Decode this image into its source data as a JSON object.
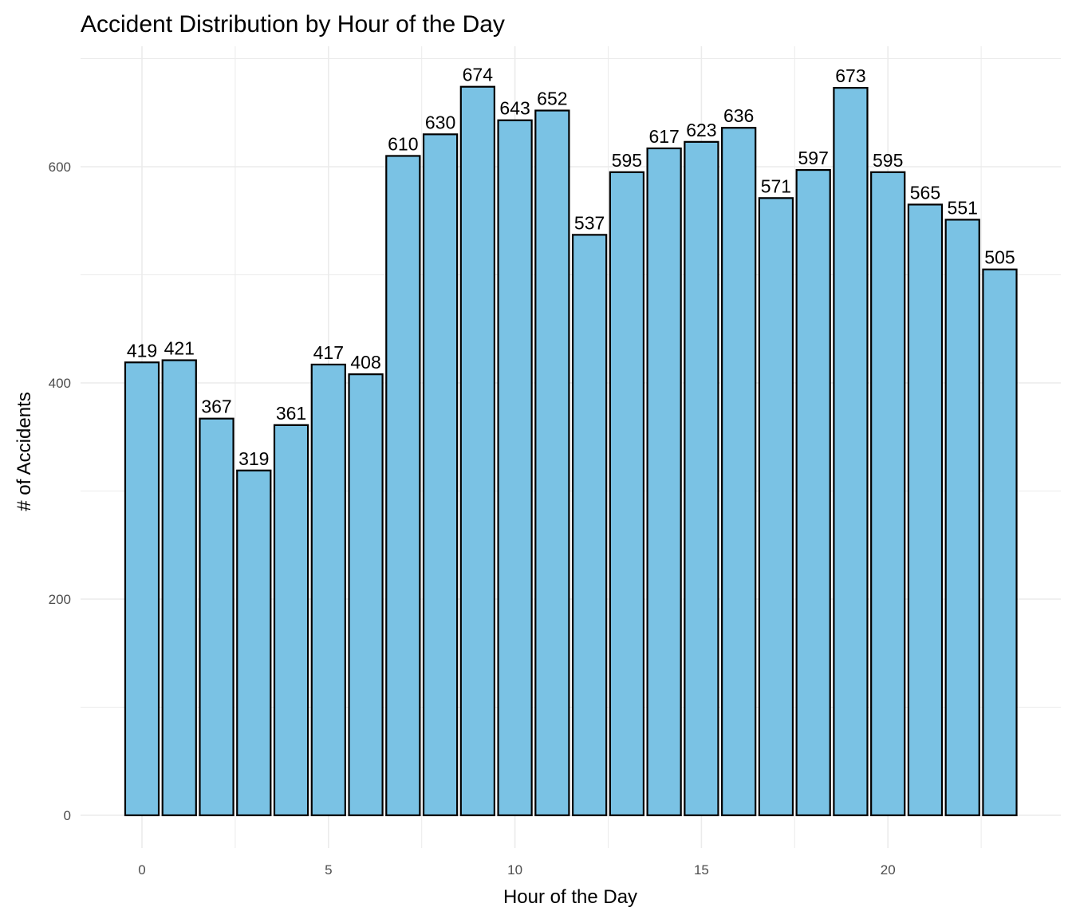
{
  "chart_data": {
    "type": "bar",
    "title": "Accident Distribution by Hour of the Day",
    "xlabel": "Hour of the Day",
    "ylabel": "# of Accidents",
    "x": [
      0,
      1,
      2,
      3,
      4,
      5,
      6,
      7,
      8,
      9,
      10,
      11,
      12,
      13,
      14,
      15,
      16,
      17,
      18,
      19,
      20,
      21,
      22,
      23
    ],
    "values": [
      419,
      421,
      367,
      319,
      361,
      417,
      408,
      610,
      630,
      674,
      643,
      652,
      537,
      595,
      617,
      623,
      636,
      571,
      597,
      673,
      595,
      565,
      551,
      505
    ],
    "xticks": [
      0,
      5,
      10,
      15,
      20
    ],
    "yticks": [
      0,
      200,
      400,
      600
    ],
    "xlim": [
      -0.5,
      23.5
    ],
    "ylim": [
      0,
      700
    ],
    "grid": true,
    "bar_fill": "#7ac2e4",
    "bar_stroke": "#000000",
    "data_labels": true
  }
}
